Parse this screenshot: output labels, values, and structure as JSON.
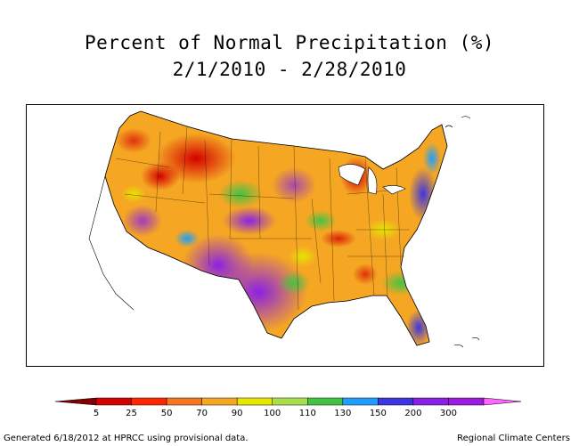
{
  "title": "Percent of Normal Precipitation (%)",
  "subtitle": "2/1/2010 - 2/28/2010",
  "legend": {
    "colors": [
      "#800000",
      "#d40000",
      "#ff2600",
      "#f5761f",
      "#f5a623",
      "#e6e600",
      "#a8e04b",
      "#44c244",
      "#1e9eff",
      "#3d35e0",
      "#8a20e6",
      "#9c1ae0",
      "#ff66ff"
    ],
    "tick_labels": [
      "5",
      "25",
      "50",
      "70",
      "90",
      "100",
      "110",
      "130",
      "150",
      "200",
      "300"
    ]
  },
  "footer": {
    "left": "Generated 6/18/2012 at HPRCC using provisional data.",
    "right": "Regional Climate Centers"
  }
}
